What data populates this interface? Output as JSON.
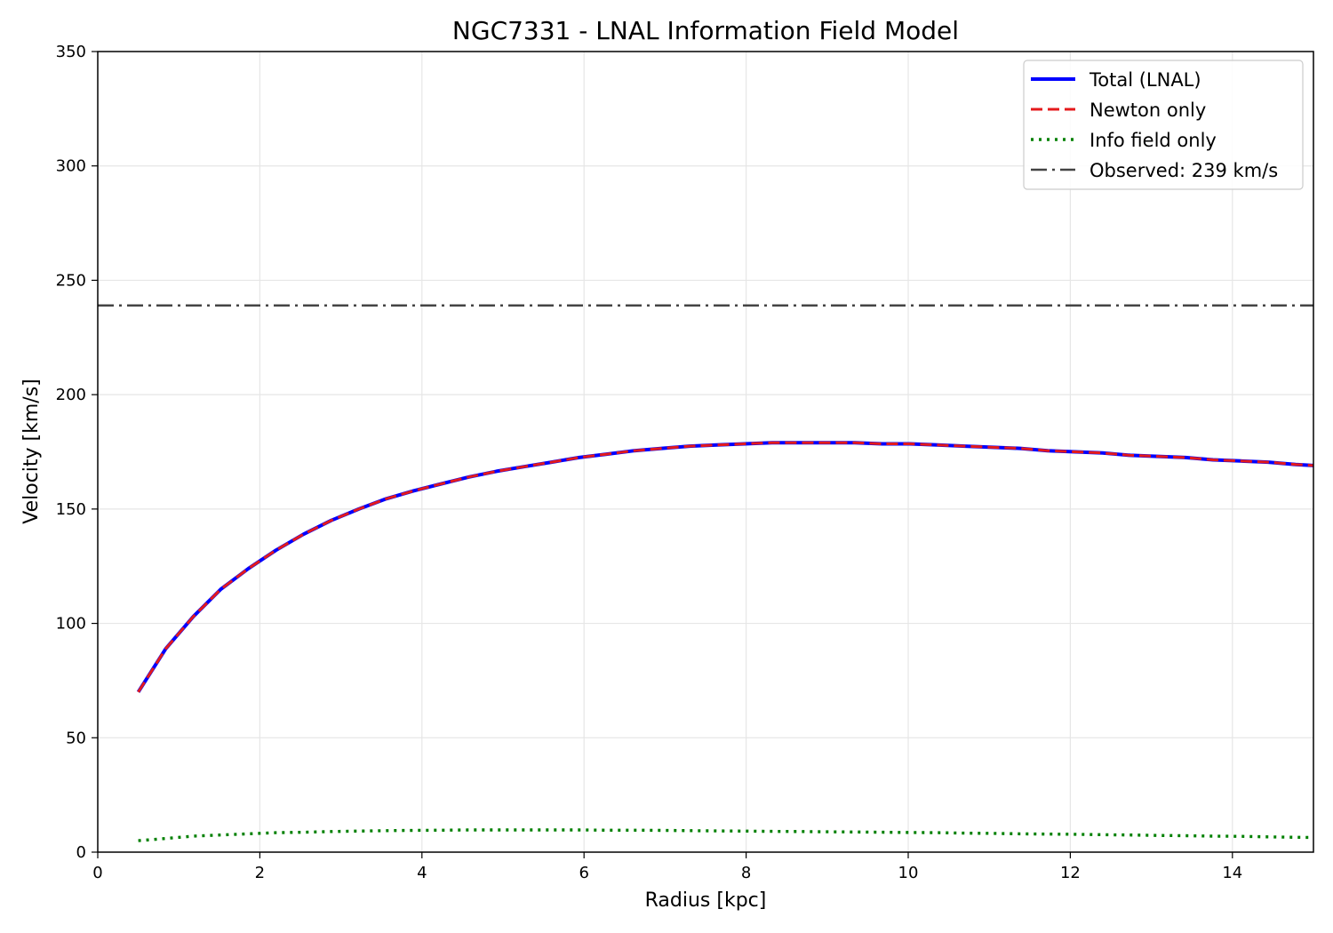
{
  "chart_data": {
    "type": "line",
    "title": "NGC7331 - LNAL Information Field Model",
    "xlabel": "Radius [kpc]",
    "ylabel": "Velocity [km/s]",
    "xlim": [
      0,
      15
    ],
    "ylim": [
      0,
      350
    ],
    "xticks": [
      0,
      2,
      4,
      6,
      8,
      10,
      12,
      14
    ],
    "yticks": [
      0,
      50,
      100,
      150,
      200,
      250,
      300,
      350
    ],
    "grid": true,
    "legend_position": "top-right",
    "x": [
      0.5,
      0.84,
      1.18,
      1.52,
      1.86,
      2.2,
      2.54,
      2.88,
      3.22,
      3.56,
      3.9,
      4.24,
      4.58,
      4.92,
      5.26,
      5.6,
      5.94,
      6.28,
      6.62,
      6.96,
      7.3,
      7.64,
      7.98,
      8.32,
      8.66,
      9.0,
      9.34,
      9.68,
      10.02,
      10.36,
      10.7,
      11.04,
      11.38,
      11.72,
      12.06,
      12.4,
      12.74,
      13.08,
      13.42,
      13.76,
      14.1,
      14.44,
      14.78,
      15.0
    ],
    "series": [
      {
        "name": "Total (LNAL)",
        "color": "#0000ff",
        "style": "solid",
        "values": [
          70,
          89,
          103,
          115,
          124,
          132,
          139,
          145,
          150,
          154.5,
          158,
          161,
          164,
          166.5,
          168.5,
          170.5,
          172.5,
          174,
          175.5,
          176.5,
          177.5,
          178,
          178.5,
          179,
          179,
          179,
          179,
          178.5,
          178.5,
          178,
          177.5,
          177,
          176.5,
          175.5,
          175,
          174.5,
          173.5,
          173,
          172.5,
          171.5,
          171,
          170.5,
          169.5,
          169
        ]
      },
      {
        "name": "Newton only",
        "color": "#e41a1c",
        "style": "dashed",
        "values": [
          70,
          89,
          103,
          115,
          124,
          132,
          139,
          145,
          150,
          154.5,
          158,
          161,
          164,
          166.5,
          168.5,
          170.5,
          172.5,
          174,
          175.5,
          176.5,
          177.5,
          178,
          178.5,
          179,
          179,
          179,
          179,
          178.5,
          178.5,
          178,
          177.5,
          177,
          176.5,
          175.5,
          175,
          174.5,
          173.5,
          173,
          172.5,
          171.5,
          171,
          170.5,
          169.5,
          169
        ]
      },
      {
        "name": "Info field only",
        "color": "#008000",
        "style": "dotted",
        "values": [
          5,
          6,
          7,
          7.5,
          8,
          8.5,
          8.7,
          9,
          9.2,
          9.4,
          9.5,
          9.6,
          9.7,
          9.7,
          9.7,
          9.7,
          9.7,
          9.6,
          9.6,
          9.5,
          9.4,
          9.3,
          9.2,
          9.1,
          9.0,
          8.9,
          8.8,
          8.7,
          8.6,
          8.5,
          8.3,
          8.2,
          8.0,
          7.9,
          7.8,
          7.6,
          7.5,
          7.3,
          7.2,
          7.0,
          6.9,
          6.7,
          6.5,
          6.4
        ]
      }
    ],
    "reference_lines": [
      {
        "name": "Observed: 239 km/s",
        "y": 239,
        "color": "#444444",
        "style": "dashdot"
      }
    ]
  }
}
